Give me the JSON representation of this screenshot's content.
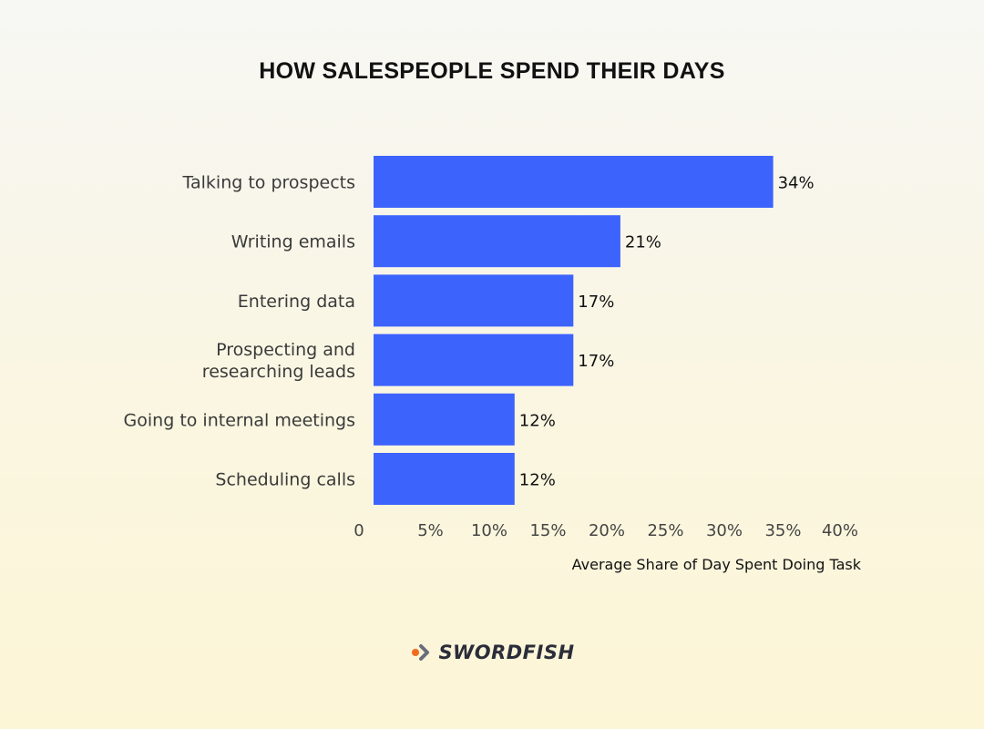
{
  "chart_data": {
    "type": "bar",
    "orientation": "horizontal",
    "title": "HOW SALESPEOPLE SPEND THEIR DAYS",
    "xlabel": "Average Share of Day Spent Doing Task",
    "ylabel": "",
    "categories": [
      "Talking to prospects",
      "Writing emails",
      "Entering data",
      "Prospecting and researching leads",
      "Going to internal meetings",
      "Scheduling calls"
    ],
    "category_lines": [
      [
        "Talking to prospects"
      ],
      [
        "Writing emails"
      ],
      [
        "Entering data"
      ],
      [
        "Prospecting and",
        "researching leads"
      ],
      [
        "Going to internal meetings"
      ],
      [
        "Scheduling calls"
      ]
    ],
    "values": [
      34,
      21,
      17,
      17,
      12,
      12
    ],
    "value_labels": [
      "34%",
      "21%",
      "17%",
      "17%",
      "12%",
      "12%"
    ],
    "xlim": [
      0,
      40
    ],
    "x_ticks": [
      0,
      5,
      10,
      15,
      20,
      25,
      30,
      35,
      40
    ],
    "x_tick_labels": [
      "0",
      "5%",
      "10%",
      "15%",
      "20%",
      "25%",
      "30%",
      "35%",
      "40%"
    ],
    "grid": false,
    "legend": "none",
    "bar_color": "#3d63fd"
  },
  "brand": {
    "name": "SWORDFISH",
    "icon": "swordfish-logo-icon",
    "accent_color": "#f26b1d",
    "dark_color": "#2b2d3a"
  }
}
